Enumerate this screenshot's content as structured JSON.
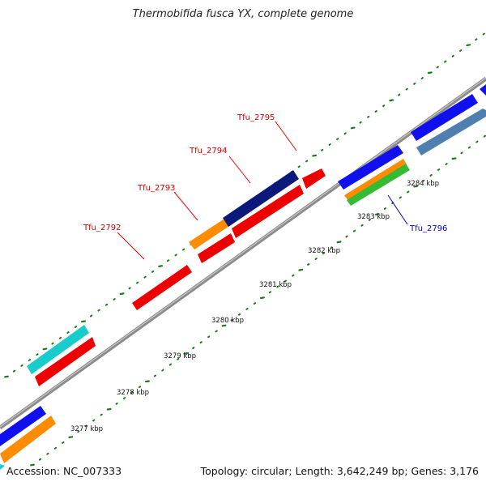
{
  "title": "Thermobifida fusca YX, complete genome",
  "footer": {
    "accession": "Accession: NC_007333",
    "summary": "Topology: circular; Length: 3,642,249 bp; Genes: 3,176"
  },
  "ruler_labels": [
    "3277 kbp",
    "3278 kbp",
    "3279 kbp",
    "3280 kbp",
    "3281 kbp",
    "3282 kbp",
    "3283 kbp",
    "3284 kbp"
  ],
  "gene_labels": [
    {
      "text": "Tfu_2792",
      "color": "#cc0000"
    },
    {
      "text": "Tfu_2793",
      "color": "#cc0000"
    },
    {
      "text": "Tfu_2794",
      "color": "#cc0000"
    },
    {
      "text": "Tfu_2795",
      "color": "#cc0000"
    },
    {
      "text": "Tfu_2796",
      "color": "#0000cc"
    }
  ],
  "colors": {
    "backbone": "#8c8c8c",
    "tick": "#1a7a1a",
    "red": "#ee0000",
    "blue": "#1010ee",
    "navy": "#0b1a7a",
    "orange": "#ff8c00",
    "cyan": "#18cccc",
    "steel": "#4f7fb0",
    "green": "#33bb33"
  }
}
